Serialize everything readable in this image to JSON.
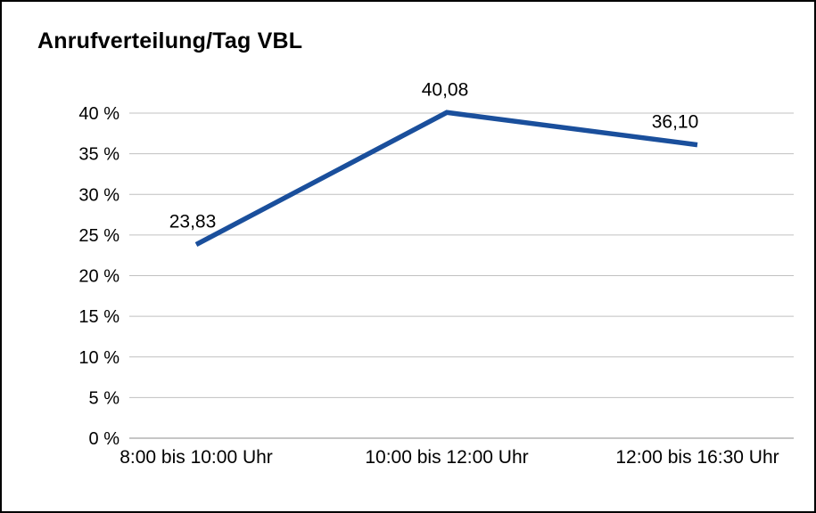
{
  "chart_data": {
    "type": "line",
    "title": "Anrufverteilung/Tag VBL",
    "categories": [
      "8:00 bis 10:00 Uhr",
      "10:00 bis 12:00 Uhr",
      "12:00 bis 16:30 Uhr"
    ],
    "values": [
      23.83,
      40.08,
      36.1
    ],
    "data_labels": [
      "23,83",
      "40,08",
      "36,10"
    ],
    "y_ticks": [
      0,
      5,
      10,
      15,
      20,
      25,
      30,
      35,
      40
    ],
    "y_tick_labels": [
      "0 %",
      "5 %",
      "10 %",
      "15 %",
      "20 %",
      "25 %",
      "30 %",
      "35 %",
      "40 %"
    ],
    "ylim": [
      0,
      40
    ],
    "xlabel": "",
    "ylabel": "",
    "grid": true,
    "legend": "none",
    "line_color": "#1a4f9c",
    "grid_color": "#c0c0c0",
    "axis_color": "#8c8c8c",
    "background": "#ffffff",
    "border_color": "#000000"
  }
}
